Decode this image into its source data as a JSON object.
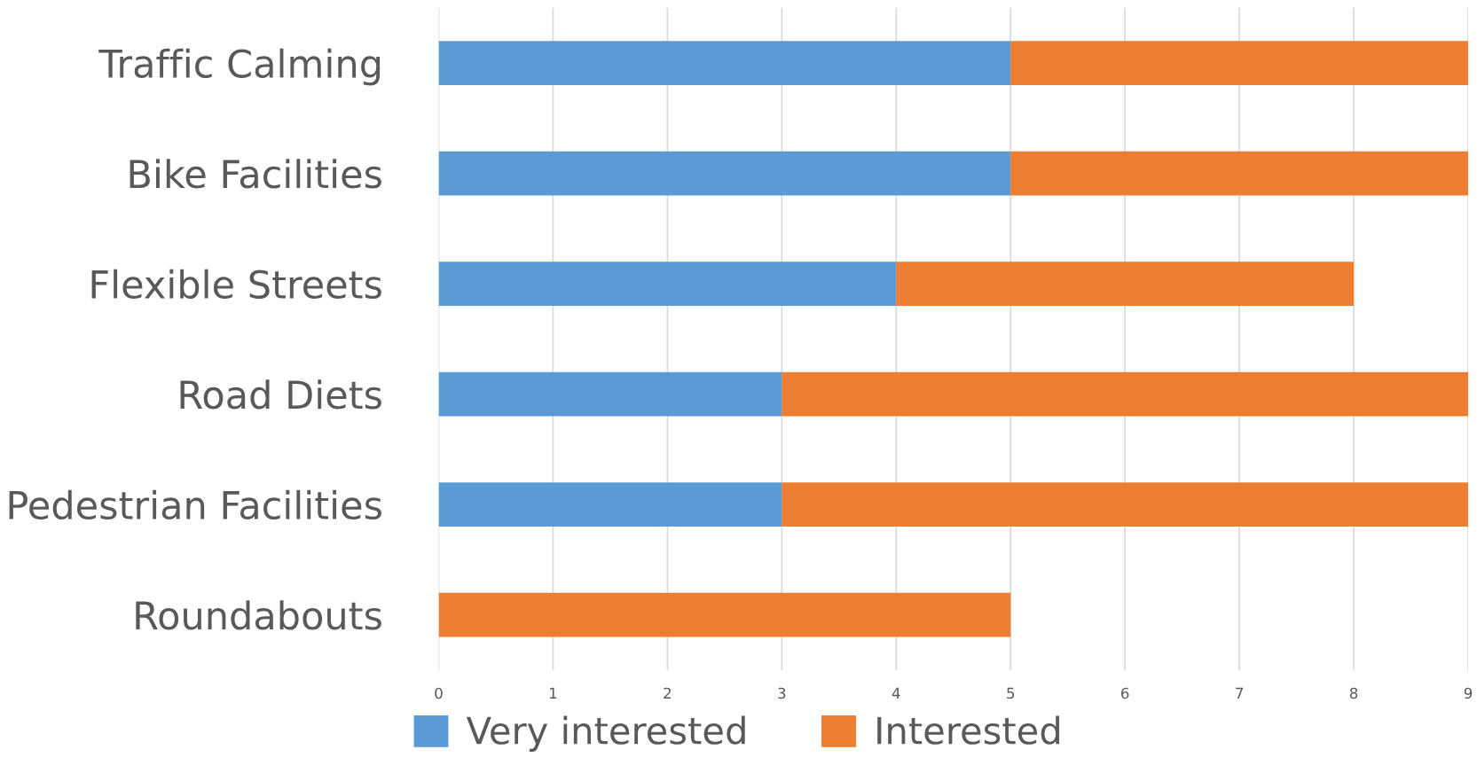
{
  "chart_data": {
    "type": "bar",
    "orientation": "horizontal",
    "stacked": true,
    "categories": [
      "Traffic Calming",
      "Bike Facilities",
      "Flexible Streets",
      "Road Diets",
      "Pedestrian Facilities",
      "Roundabouts"
    ],
    "series": [
      {
        "name": "Very interested",
        "color": "#5b9bd5",
        "values": [
          5,
          5,
          4,
          3,
          3,
          0
        ]
      },
      {
        "name": "Interested",
        "color": "#ed7d31",
        "values": [
          4,
          4,
          4,
          6,
          6,
          5
        ]
      }
    ],
    "xlim": [
      0,
      9
    ],
    "xticks": [
      0,
      1,
      2,
      3,
      4,
      5,
      6,
      7,
      8,
      9
    ],
    "grid": "x",
    "legend": "bottom"
  }
}
